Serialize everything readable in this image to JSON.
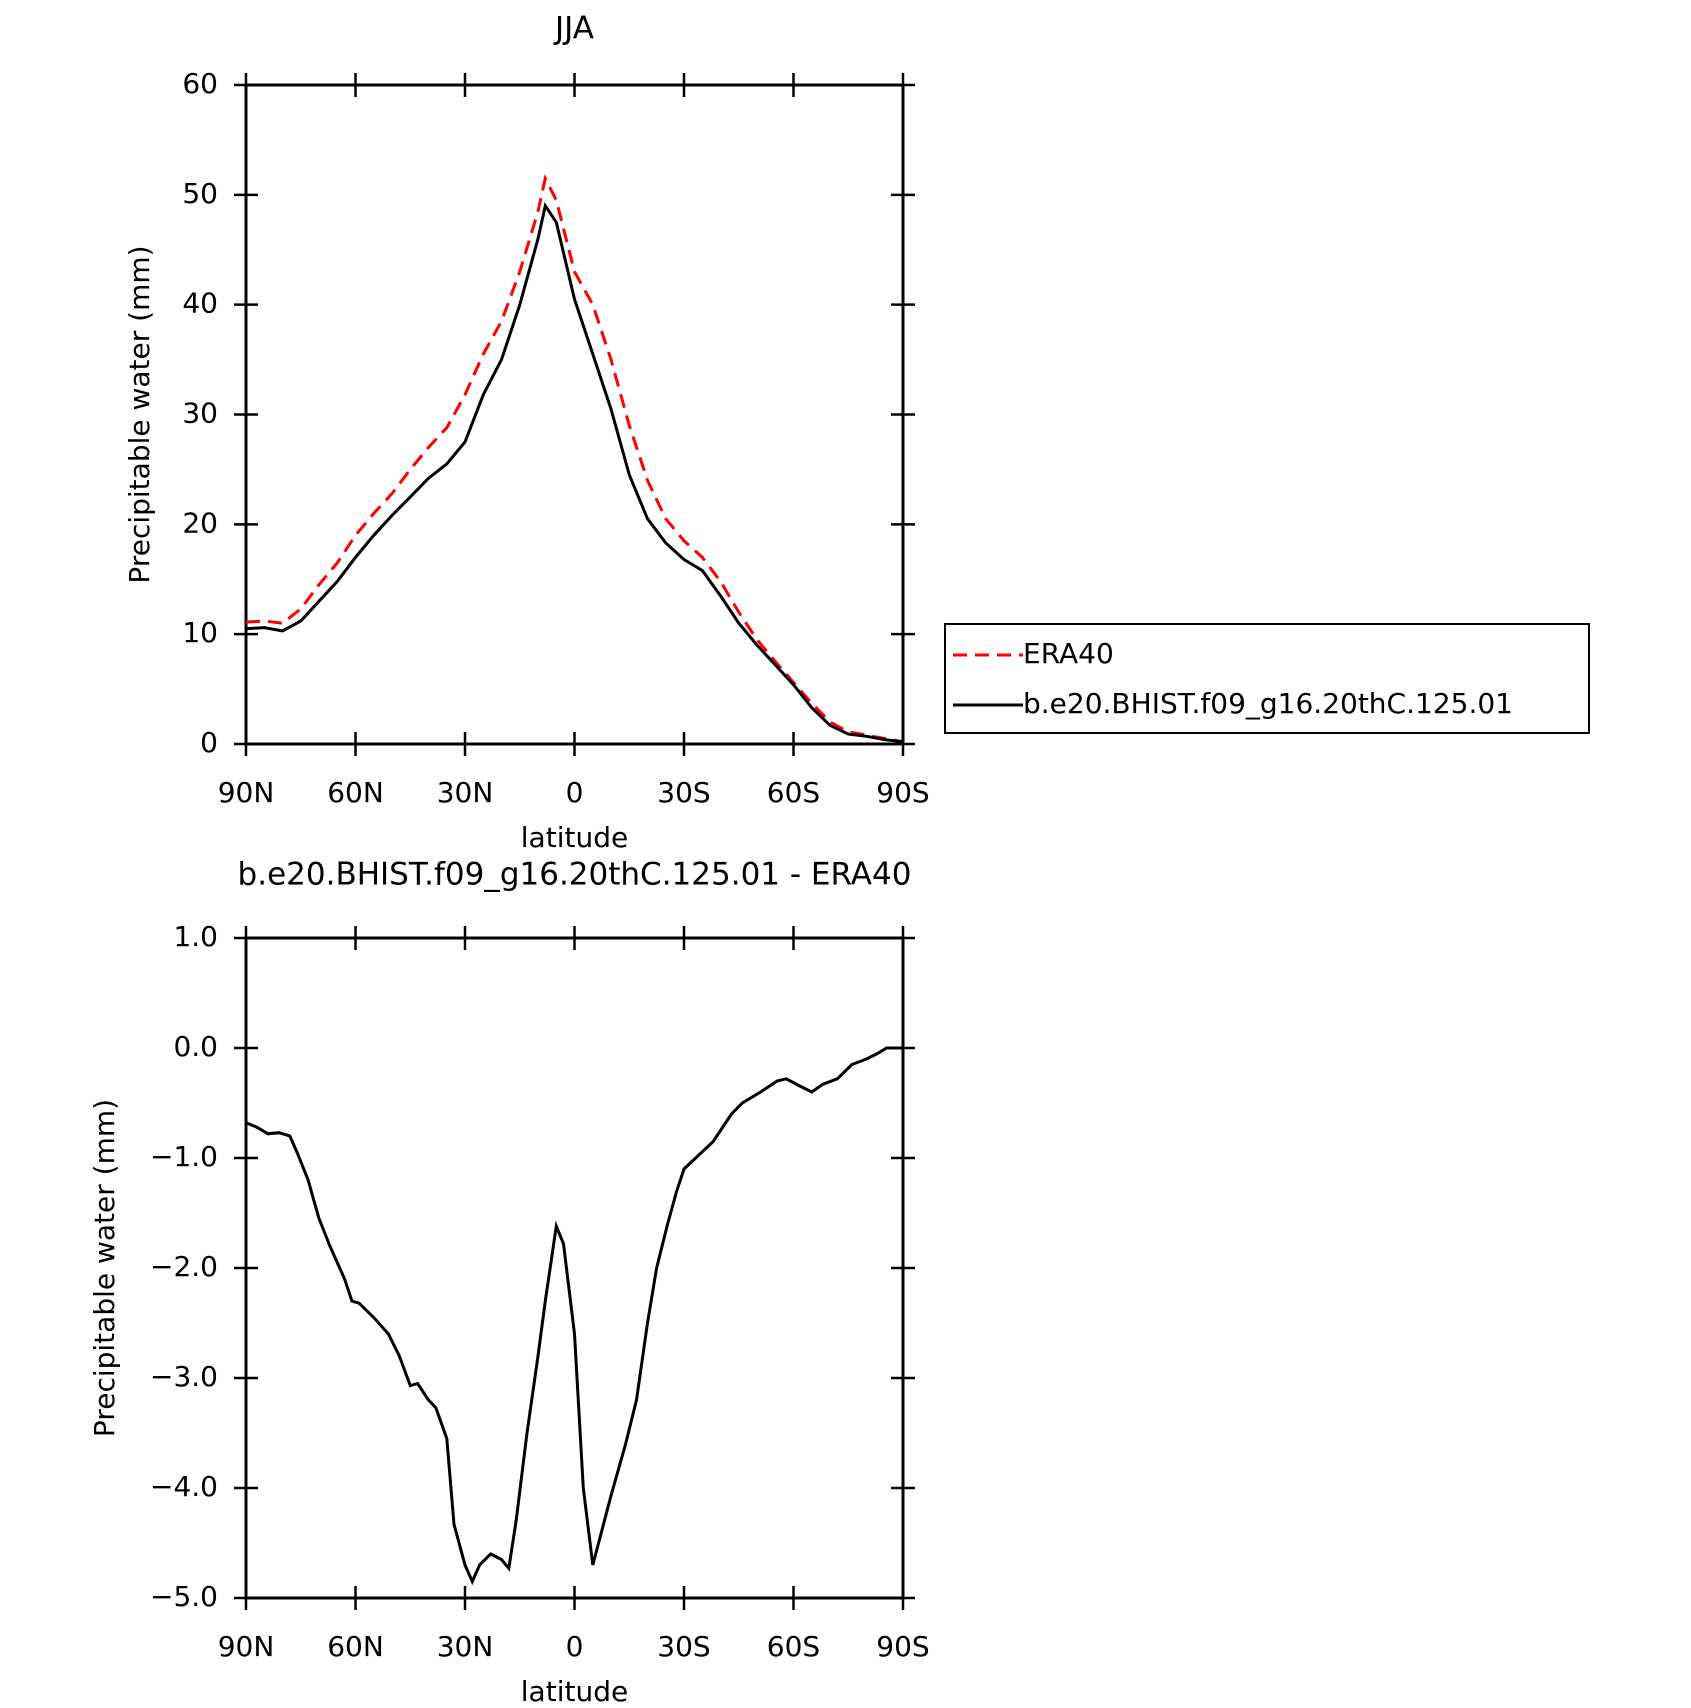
{
  "chart_data": [
    {
      "type": "line",
      "title": "JJA",
      "xlabel": "latitude",
      "ylabel": "Precipitable water (mm)",
      "x": [
        90,
        85,
        80,
        75,
        70,
        65,
        60,
        55,
        50,
        45,
        40,
        35,
        30,
        25,
        20,
        15,
        10,
        8,
        5,
        0,
        -5,
        -10,
        -15,
        -20,
        -25,
        -30,
        -35,
        -40,
        -45,
        -50,
        -55,
        -60,
        -65,
        -70,
        -75,
        -80,
        -85,
        -90
      ],
      "series": [
        {
          "name": "ERA40",
          "color": "#ff0000",
          "dashed": true,
          "values": [
            11.1,
            11.2,
            11.0,
            12.3,
            14.5,
            16.5,
            19.0,
            21.0,
            22.8,
            25.0,
            27.0,
            28.8,
            31.8,
            35.5,
            38.5,
            43.0,
            48.5,
            51.5,
            49.5,
            43.0,
            40.0,
            35.0,
            29.0,
            24.0,
            20.5,
            18.5,
            17.0,
            14.8,
            12.0,
            9.5,
            7.5,
            5.6,
            3.7,
            2.0,
            1.1,
            0.8,
            0.5,
            0.2
          ]
        },
        {
          "name": "b.e20.BHIST.f09_g16.20thC.125.01",
          "color": "#000000",
          "dashed": false,
          "values": [
            10.5,
            10.6,
            10.3,
            11.2,
            13.0,
            14.8,
            17.0,
            19.0,
            20.8,
            22.5,
            24.2,
            25.5,
            27.5,
            31.8,
            35.0,
            40.0,
            46.0,
            49.0,
            47.5,
            40.5,
            35.5,
            30.5,
            24.5,
            20.5,
            18.3,
            16.8,
            15.8,
            13.5,
            11.0,
            9.0,
            7.2,
            5.4,
            3.3,
            1.7,
            0.9,
            0.7,
            0.4,
            0.2
          ]
        }
      ],
      "xlim": [
        90,
        -90
      ],
      "xticks": [
        {
          "value": 90,
          "label": "90N"
        },
        {
          "value": 60,
          "label": "60N"
        },
        {
          "value": 30,
          "label": "30N"
        },
        0,
        {
          "value": -30,
          "label": "30S"
        },
        {
          "value": -60,
          "label": "60S"
        },
        {
          "value": -90,
          "label": "90S"
        }
      ],
      "ylim": [
        0,
        60
      ],
      "yticks": [
        0,
        10,
        20,
        30,
        40,
        50,
        60
      ],
      "legend": "outside-right"
    },
    {
      "type": "line",
      "title": "b.e20.BHIST.f09_g16.20thC.125.01 - ERA40",
      "xlabel": "latitude",
      "ylabel": "Precipitable water (mm)",
      "x": [
        90,
        87,
        84,
        81,
        78,
        76,
        73,
        70,
        67,
        63,
        61,
        59,
        55,
        51,
        48,
        45,
        43,
        40,
        38,
        35,
        33,
        30,
        28,
        26,
        23,
        20,
        18,
        16,
        13,
        10,
        8,
        5,
        3,
        0,
        -2.4,
        -5,
        -10,
        -14,
        -17,
        -20,
        -22.5,
        -25.5,
        -28,
        -30,
        -38,
        -40,
        -43,
        -46,
        -51,
        -55.5,
        -58,
        -62,
        -65,
        -68,
        -72,
        -76,
        -80,
        -83,
        -85.5,
        -90
      ],
      "series": [
        {
          "name": "b.e20.BHIST.f09_g16.20thC.125.01 - ERA40",
          "color": "#000000",
          "dashed": false,
          "values": [
            -0.68,
            -0.72,
            -0.78,
            -0.77,
            -0.8,
            -0.95,
            -1.2,
            -1.55,
            -1.8,
            -2.1,
            -2.3,
            -2.32,
            -2.45,
            -2.6,
            -2.8,
            -3.07,
            -3.05,
            -3.2,
            -3.27,
            -3.55,
            -4.33,
            -4.7,
            -4.85,
            -4.7,
            -4.6,
            -4.65,
            -4.73,
            -4.3,
            -3.5,
            -2.8,
            -2.3,
            -1.62,
            -1.78,
            -2.6,
            -4.0,
            -4.7,
            -4.07,
            -3.6,
            -3.2,
            -2.5,
            -2.0,
            -1.6,
            -1.3,
            -1.1,
            -0.85,
            -0.75,
            -0.6,
            -0.5,
            -0.4,
            -0.3,
            -0.28,
            -0.35,
            -0.4,
            -0.33,
            -0.28,
            -0.15,
            -0.1,
            -0.05,
            0,
            0
          ]
        }
      ],
      "xlim": [
        90,
        -90
      ],
      "xticks": [
        {
          "value": 90,
          "label": "90N"
        },
        {
          "value": 60,
          "label": "60N"
        },
        {
          "value": 30,
          "label": "30N"
        },
        0,
        {
          "value": -30,
          "label": "30S"
        },
        {
          "value": -60,
          "label": "60S"
        },
        {
          "value": -90,
          "label": "90S"
        }
      ],
      "ylim": [
        -5,
        1
      ],
      "yticks": [
        {
          "value": -5,
          "label": "−5.0"
        },
        {
          "value": -4,
          "label": "−4.0"
        },
        {
          "value": -3,
          "label": "−3.0"
        },
        {
          "value": -2,
          "label": "−2.0"
        },
        {
          "value": -1,
          "label": "−1.0"
        },
        {
          "value": 0,
          "label": "0.0"
        },
        {
          "value": 1,
          "label": "1.0"
        }
      ]
    }
  ]
}
